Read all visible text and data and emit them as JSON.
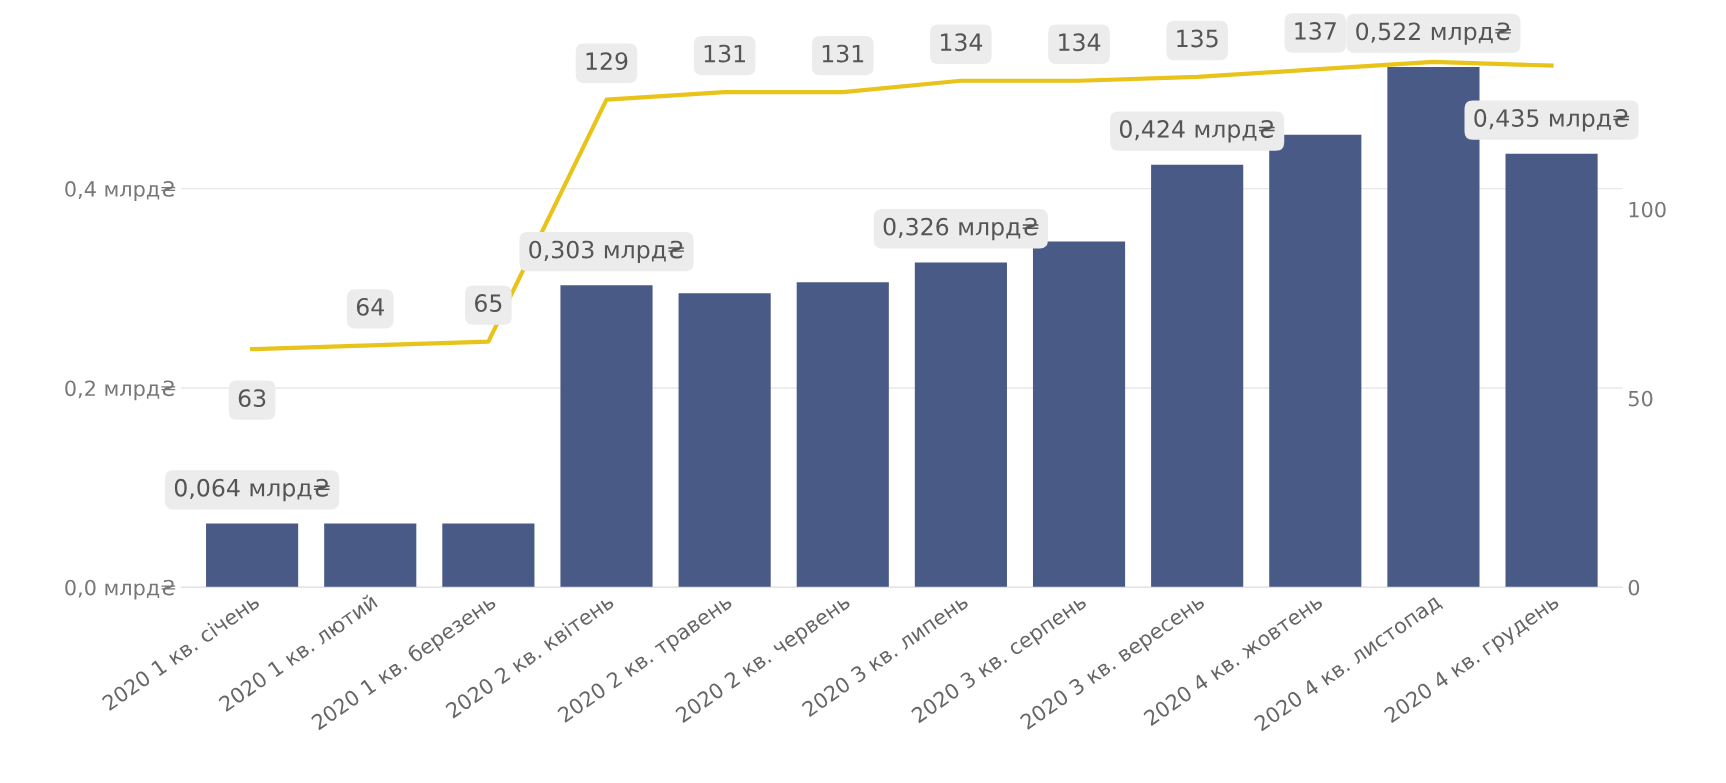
{
  "chart_data": {
    "type": "bar",
    "categories": [
      "2020 1 кв. січень",
      "2020 1 кв. лютий",
      "2020 1 кв. березень",
      "2020 2 кв. квітень",
      "2020 2 кв. травень",
      "2020 2 кв. червень",
      "2020 3 кв. липень",
      "2020 3 кв. серпень",
      "2020 3 кв. вересень",
      "2020 4 кв. жовтень",
      "2020 4 кв. листопад",
      "2020 4 кв. грудень"
    ],
    "series": [
      {
        "color": "#4a5a87",
        "values": [
          0.064,
          0.064,
          0.064,
          0.303,
          0.295,
          0.306,
          0.326,
          0.347,
          0.424,
          0.454,
          0.522,
          0.435
        ],
        "value_labels": [
          "0,064 млрд₴",
          null,
          null,
          "0,303 млрд₴",
          null,
          null,
          "0,326 млрд₴",
          null,
          "0,424 млрд₴",
          null,
          "0,522 млрд₴",
          "0,435 млрд₴"
        ]
      },
      {
        "type": "line",
        "axis": "y2",
        "color": "#e8c31a",
        "values": [
          63,
          64,
          65,
          129,
          131,
          131,
          134,
          134,
          135,
          137,
          139,
          138
        ],
        "value_labels": [
          "63",
          "64",
          "65",
          "129",
          "131",
          "131",
          "134",
          "134",
          "135",
          "137",
          null,
          null
        ]
      }
    ],
    "ylim": [
      0,
      0.55
    ],
    "yticks": [
      {
        "value": 0,
        "label": "0,0 млрд₴"
      },
      {
        "value": 0.2,
        "label": "0,2 млрд₴"
      },
      {
        "value": 0.4,
        "label": "0,4 млрд₴"
      }
    ],
    "y2lim": [
      0,
      145
    ],
    "y2ticks": [
      0,
      50,
      100
    ],
    "grid": "y",
    "marker": "none",
    "line_style": "solid"
  }
}
